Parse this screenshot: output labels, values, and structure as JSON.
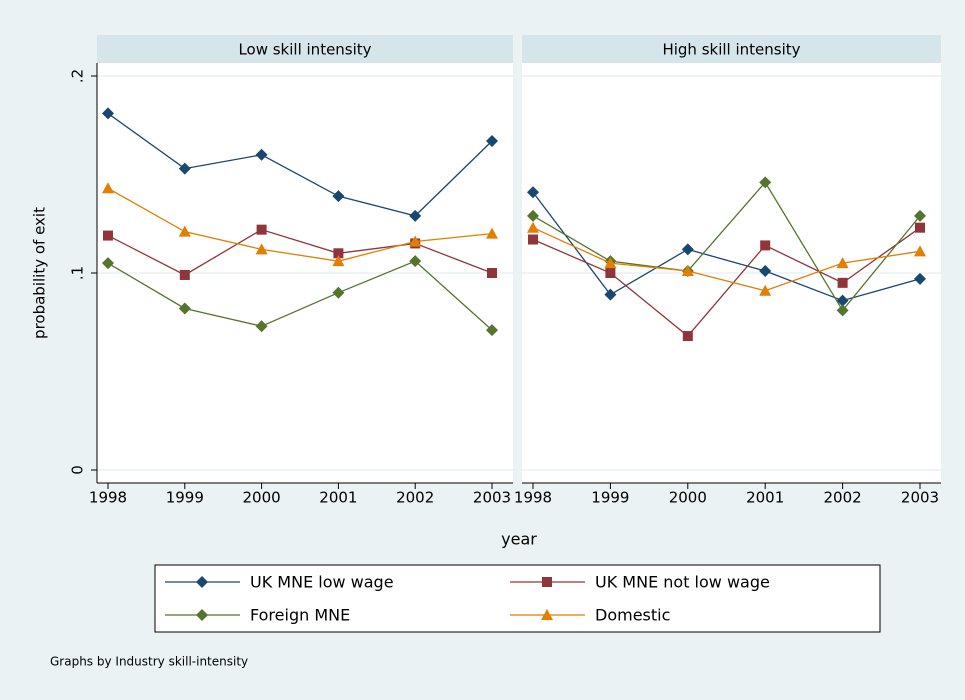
{
  "chart_data": [
    {
      "type": "line",
      "title": "Low skill intensity",
      "y_label": "probability of exit",
      "x_label": "year",
      "note": "Graphs by Industry skill-intensity",
      "categories": [
        "1998",
        "1999",
        "2000",
        "2001",
        "2002",
        "2003"
      ],
      "ylim": [
        0,
        0.2
      ],
      "yticks": [
        {
          "value": 0,
          "label": "0"
        },
        {
          "value": 0.1,
          "label": ".1"
        },
        {
          "value": 0.2,
          "label": ".2"
        }
      ],
      "grid": true,
      "series": [
        {
          "name": "UK MNE low wage",
          "color": "#1a476f",
          "marker": "diamond",
          "values": [
            0.181,
            0.153,
            0.16,
            0.139,
            0.129,
            0.167
          ]
        },
        {
          "name": "UK MNE not low wage",
          "color": "#90353b",
          "marker": "square",
          "values": [
            0.119,
            0.099,
            0.122,
            0.11,
            0.115,
            0.1
          ]
        },
        {
          "name": "Foreign MNE",
          "color": "#55752f",
          "marker": "diamond",
          "values": [
            0.105,
            0.082,
            0.073,
            0.09,
            0.106,
            0.071
          ]
        },
        {
          "name": "Domestic",
          "color": "#e37e00",
          "marker": "triangle",
          "values": [
            0.143,
            0.121,
            0.112,
            0.106,
            0.116,
            0.12
          ]
        }
      ]
    },
    {
      "type": "line",
      "title": "High skill intensity",
      "categories": [
        "1998",
        "1999",
        "2000",
        "2001",
        "2002",
        "2003"
      ],
      "ylim": [
        0,
        0.2
      ],
      "yticks": [
        0,
        0.1,
        0.2
      ],
      "grid": true,
      "series": [
        {
          "color": "#1a476f",
          "marker": "diamond",
          "values": [
            0.141,
            0.089,
            0.112,
            0.101,
            0.086,
            0.097
          ]
        },
        {
          "color": "#90353b",
          "marker": "square",
          "values": [
            0.117,
            0.1,
            0.068,
            0.114,
            0.095,
            0.123
          ]
        },
        {
          "color": "#55752f",
          "marker": "diamond",
          "values": [
            0.129,
            0.106,
            0.101,
            0.146,
            0.081,
            0.129
          ]
        },
        {
          "color": "#e37e00",
          "marker": "triangle",
          "values": [
            0.123,
            0.105,
            0.101,
            0.091,
            0.105,
            0.111
          ]
        }
      ]
    }
  ]
}
